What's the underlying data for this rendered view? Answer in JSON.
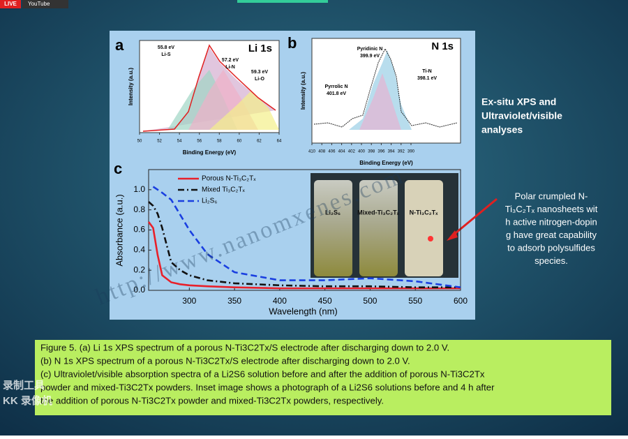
{
  "header": {
    "live": "LIVE",
    "platform": "YouTube"
  },
  "slide": {
    "heading": [
      "Ex-situ XPS and",
      "Ultraviolet/visible",
      "analyses"
    ],
    "note": [
      "Polar crumpled N-",
      "Ti₃C₂Tₓ nanosheets wit",
      "h active nitrogen-dopin",
      "g have great capability",
      "to adsorb polysulfides",
      "species."
    ],
    "caption": [
      "Figure 5. (a) Li 1s XPS spectrum of a porous N-Ti3C2Tx/S electrode after discharging down to 2.0 V.",
      "(b) N 1s XPS spectrum of a porous N-Ti3C2Tx/S electrode after discharging down to 2.0 V.",
      "(c) Ultraviolet/visible absorption spectra of a Li2S6 solution before and after the addition of porous N-Ti3C2Tx",
      "powder and mixed-Ti3C2Tx powders. Inset image shows a photograph of a Li2S6 solutions before and 4 h after",
      "the addition of porous N-Ti3C2Tx powder and mixed-Ti3C2Tx powders, respectively."
    ],
    "watermark": "http://www.nanomxenes.com",
    "recorder": [
      "录制工具",
      "KK 录像机"
    ]
  },
  "panel_a": {
    "label": "a",
    "title": "Li 1s",
    "ylabel": "Intensity (a.u.)",
    "xlabel": "Binding Energy (eV)",
    "xlim": [
      50,
      64
    ],
    "xticks": [
      50,
      52,
      54,
      56,
      58,
      60,
      62,
      64
    ],
    "annotations": [
      [
        "55.8 eV",
        "Li-S"
      ],
      [
        "57.2 eV",
        "Li-N"
      ],
      [
        "59.3 eV",
        "Li-O"
      ]
    ]
  },
  "panel_b": {
    "label": "b",
    "title": "N 1s",
    "ylabel": "Intensity (a.u.)",
    "xlabel": "Binding Energy (eV)",
    "xlim": [
      410,
      380
    ],
    "xticks": [
      410,
      408,
      406,
      404,
      402,
      400,
      398,
      396,
      394,
      392,
      390
    ],
    "annotations": [
      [
        "Pyridinic N",
        "399.9 eV"
      ],
      [
        "Pyrrolic N",
        "401.8 eV"
      ],
      [
        "Ti-N",
        "398.1 eV"
      ]
    ]
  },
  "panel_c": {
    "label": "c",
    "vials": [
      "Li₂S₆",
      "Mixed-Ti₃C₂Tₓ",
      "N-Ti₃C₂Tₓ"
    ]
  },
  "chart_data": {
    "type": "line",
    "xlabel": "Wavelength (nm)",
    "ylabel": "Absorbance (a.u.)",
    "x": [
      255,
      260,
      265,
      270,
      280,
      290,
      300,
      320,
      350,
      400,
      450,
      500,
      550,
      600
    ],
    "series": [
      {
        "name": "Porous N-Ti₃C₂Tₓ",
        "color": "#e8202a",
        "dash": "solid",
        "values": [
          0.68,
          0.62,
          0.35,
          0.15,
          0.08,
          0.06,
          0.05,
          0.04,
          0.03,
          0.02,
          0.02,
          0.02,
          0.02,
          0.02
        ]
      },
      {
        "name": "Mixed Ti₃C₂Tₓ",
        "color": "#111111",
        "dash": "dashdot",
        "values": [
          0.88,
          0.84,
          0.76,
          0.62,
          0.28,
          0.2,
          0.15,
          0.1,
          0.07,
          0.05,
          0.04,
          0.04,
          0.03,
          0.03
        ]
      },
      {
        "name": "Li₂S₆",
        "color": "#1a3fe0",
        "dash": "dashed",
        "values": [
          null,
          1.03,
          1.0,
          0.97,
          0.9,
          0.75,
          0.6,
          0.36,
          0.18,
          0.1,
          0.1,
          0.12,
          0.09,
          0.03
        ]
      }
    ],
    "xlim": [
      255,
      600
    ],
    "ylim": [
      0,
      1.2
    ],
    "xticks": [
      300,
      350,
      400,
      450,
      500,
      550,
      600
    ],
    "yticks": [
      {
        "value": 0,
        "label": "0.0"
      },
      0.2,
      0.4,
      0.6,
      0.8,
      {
        "value": 1,
        "label": "1.0"
      }
    ]
  }
}
